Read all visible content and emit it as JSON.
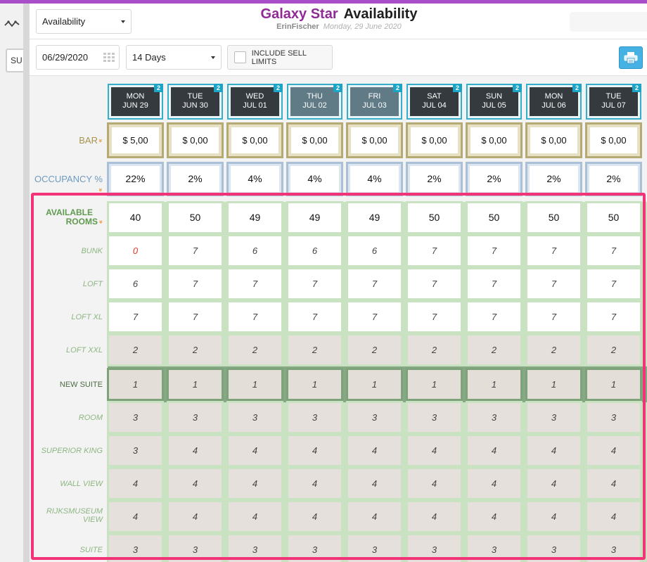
{
  "header": {
    "view_select": "Availability",
    "brand": "Galaxy Star",
    "page_title": "Availability",
    "user": "ErinFischer",
    "date": "Monday, 29 June 2020"
  },
  "sidebar": {
    "button_label": "SU"
  },
  "toolbar": {
    "date_value": "06/29/2020",
    "range_select": "14 Days",
    "sell_limits_label": "INCLUDE SELL LIMITS",
    "sell_limits_checked": false
  },
  "days": [
    {
      "dow": "MON",
      "date": "JUN 29",
      "badge": "2",
      "selected": false
    },
    {
      "dow": "TUE",
      "date": "JUN 30",
      "badge": "2",
      "selected": false
    },
    {
      "dow": "WED",
      "date": "JUL 01",
      "badge": "2",
      "selected": false
    },
    {
      "dow": "THU",
      "date": "JUL 02",
      "badge": "2",
      "selected": true
    },
    {
      "dow": "FRI",
      "date": "JUL 03",
      "badge": "2",
      "selected": true
    },
    {
      "dow": "SAT",
      "date": "JUL 04",
      "badge": "2",
      "selected": false
    },
    {
      "dow": "SUN",
      "date": "JUL 05",
      "badge": "2",
      "selected": false
    },
    {
      "dow": "MON",
      "date": "JUL 06",
      "badge": "2",
      "selected": false
    },
    {
      "dow": "TUE",
      "date": "JUL 07",
      "badge": "2",
      "selected": false
    }
  ],
  "bar": {
    "label": "BAR",
    "values": [
      "$ 5,00",
      "$ 0,00",
      "$ 0,00",
      "$ 0,00",
      "$ 0,00",
      "$ 0,00",
      "$ 0,00",
      "$ 0,00",
      "$ 0,00"
    ]
  },
  "occupancy": {
    "label": "OCCUPANCY %",
    "values": [
      "22%",
      "2%",
      "4%",
      "4%",
      "4%",
      "2%",
      "2%",
      "2%",
      "2%"
    ]
  },
  "available": {
    "label_line1": "AVAILABLE",
    "label_line2": "ROOMS",
    "values": [
      "40",
      "50",
      "49",
      "49",
      "49",
      "50",
      "50",
      "50",
      "50"
    ]
  },
  "rooms": [
    {
      "name": "BUNK",
      "values": [
        "0",
        "7",
        "6",
        "6",
        "6",
        "7",
        "7",
        "7",
        "7"
      ],
      "style": "white"
    },
    {
      "name": "LOFT",
      "values": [
        "6",
        "7",
        "7",
        "7",
        "7",
        "7",
        "7",
        "7",
        "7"
      ],
      "style": "white"
    },
    {
      "name": "LOFT XL",
      "values": [
        "7",
        "7",
        "7",
        "7",
        "7",
        "7",
        "7",
        "7",
        "7"
      ],
      "style": "white"
    },
    {
      "name": "LOFT XXL",
      "values": [
        "2",
        "2",
        "2",
        "2",
        "2",
        "2",
        "2",
        "2",
        "2"
      ],
      "style": "grey"
    },
    {
      "name": "NEW SUITE",
      "values": [
        "1",
        "1",
        "1",
        "1",
        "1",
        "1",
        "1",
        "1",
        "1"
      ],
      "style": "active"
    },
    {
      "name": "ROOM",
      "values": [
        "3",
        "3",
        "3",
        "3",
        "3",
        "3",
        "3",
        "3",
        "3"
      ],
      "style": "grey"
    },
    {
      "name": "SUPERIOR KING",
      "values": [
        "3",
        "4",
        "4",
        "4",
        "4",
        "4",
        "4",
        "4",
        "4"
      ],
      "style": "grey"
    },
    {
      "name": "WALL VIEW",
      "values": [
        "4",
        "4",
        "4",
        "4",
        "4",
        "4",
        "4",
        "4",
        "4"
      ],
      "style": "grey"
    },
    {
      "name": "RIJKSMUSEUM VIEW",
      "values": [
        "4",
        "4",
        "4",
        "4",
        "4",
        "4",
        "4",
        "4",
        "4"
      ],
      "style": "grey"
    },
    {
      "name": "SUITE",
      "values": [
        "3",
        "3",
        "3",
        "3",
        "3",
        "3",
        "3",
        "3",
        "3"
      ],
      "style": "grey"
    }
  ],
  "colors": {
    "brand": "#8f2a96",
    "accent_top": "#a84ec9",
    "day_border": "#37aec9",
    "highlight": "#f33377",
    "zero_value": "#e0392f"
  }
}
